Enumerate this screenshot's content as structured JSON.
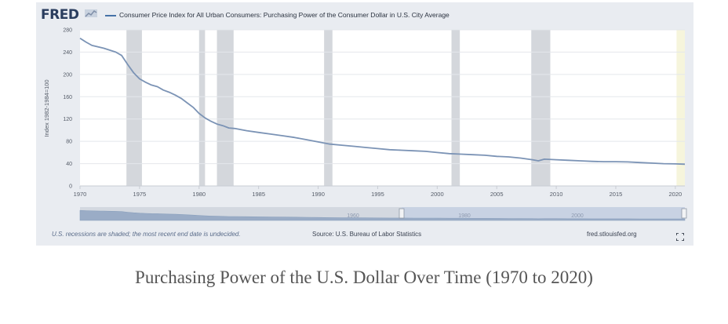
{
  "logo": {
    "text": "FRED"
  },
  "legend": {
    "series_label": "Consumer Price Index for All Urban Consumers: Purchasing Power of the Consumer Dollar in U.S. City Average"
  },
  "footer": {
    "note": "U.S. recessions are shaded; the most recent end date is undecided.",
    "source": "Source: U.S. Bureau of Labor Statistics",
    "site": "fred.stlouisfed.org"
  },
  "caption": "Purchasing Power of the U.S. Dollar Over Time (1970 to 2020)",
  "colors": {
    "line": "#7b93b5",
    "recession": "#d4d7dc",
    "panel": "#e9ecf1",
    "plot": "#ffffff",
    "forecast_band": "#f6f5dc",
    "navigator": "#c8d2e3"
  },
  "chart_data": {
    "type": "line",
    "title": "",
    "xlabel": "",
    "ylabel": "Index 1982-1984=100",
    "xlim": [
      1970,
      2020.8
    ],
    "ylim": [
      0,
      280
    ],
    "x_ticks": [
      1970,
      1975,
      1980,
      1985,
      1990,
      1995,
      2000,
      2005,
      2010,
      2015,
      2020
    ],
    "y_ticks": [
      0,
      40,
      80,
      120,
      160,
      200,
      240,
      280
    ],
    "grid": "horizontal",
    "legend": "top-left",
    "recessions": [
      [
        1973.9,
        1975.2
      ],
      [
        1980.0,
        1980.5
      ],
      [
        1981.5,
        1982.9
      ],
      [
        1990.5,
        1991.2
      ],
      [
        2001.2,
        2001.9
      ],
      [
        2007.9,
        2009.5
      ]
    ],
    "undecided_band": [
      2020.1,
      2020.8
    ],
    "series": [
      {
        "name": "Consumer Price Index for All Urban Consumers: Purchasing Power of the Consumer Dollar in U.S. City Average",
        "x": [
          1970,
          1970.5,
          1971,
          1972,
          1973,
          1973.5,
          1974,
          1974.5,
          1975,
          1975.5,
          1976,
          1976.5,
          1977,
          1977.5,
          1978,
          1978.5,
          1979,
          1979.5,
          1980,
          1980.5,
          1981,
          1981.5,
          1982,
          1982.5,
          1983,
          1984,
          1985,
          1986,
          1987,
          1988,
          1989,
          1990,
          1991,
          1992,
          1993,
          1994,
          1995,
          1996,
          1997,
          1998,
          1999,
          2000,
          2001,
          2002,
          2003,
          2004,
          2005,
          2006,
          2007,
          2008,
          2008.5,
          2009,
          2010,
          2011,
          2012,
          2013,
          2014,
          2015,
          2016,
          2017,
          2018,
          2019,
          2020,
          2020.8
        ],
        "values": [
          265,
          258,
          252,
          247,
          240,
          234,
          218,
          203,
          192,
          186,
          181,
          178,
          172,
          168,
          163,
          157,
          149,
          141,
          130,
          122,
          116,
          111,
          108,
          104,
          103,
          99,
          96,
          93,
          90,
          87,
          83,
          79,
          75,
          73,
          71,
          69,
          67,
          65,
          64,
          63,
          62,
          60,
          58,
          57,
          56,
          55,
          53,
          52,
          50,
          47,
          45,
          48,
          47,
          46,
          45,
          44,
          43.5,
          43.5,
          43,
          42,
          41,
          40,
          39.5,
          39
        ]
      }
    ],
    "navigator": {
      "range_x": [
        1970,
        2020.8
      ],
      "labels": [
        "1960",
        "1980",
        "2000"
      ]
    }
  }
}
